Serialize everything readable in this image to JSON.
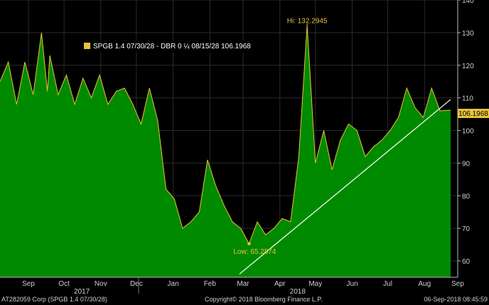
{
  "chart_data": {
    "type": "area",
    "series": [
      {
        "name": "SPGB 1.4 07/30/28 - DBR 0 ¼ 08/15/28 106.1968",
        "color": "#e8c23a",
        "fill": "#008a00",
        "x": [
          "2017-08-22",
          "2017-08-29",
          "2017-09-05",
          "2017-09-12",
          "2017-09-19",
          "2017-09-26",
          "2017-10-01",
          "2017-10-03",
          "2017-10-10",
          "2017-10-17",
          "2017-10-24",
          "2017-10-31",
          "2017-11-07",
          "2017-11-14",
          "2017-11-21",
          "2017-11-28",
          "2017-12-05",
          "2017-12-12",
          "2017-12-19",
          "2017-12-26",
          "2018-01-02",
          "2018-01-09",
          "2018-01-16",
          "2018-01-23",
          "2018-01-30",
          "2018-02-06",
          "2018-02-13",
          "2018-02-20",
          "2018-02-27",
          "2018-03-06",
          "2018-03-13",
          "2018-03-20",
          "2018-03-27",
          "2018-04-03",
          "2018-04-10",
          "2018-04-17",
          "2018-04-24",
          "2018-05-01",
          "2018-05-08",
          "2018-05-15",
          "2018-05-22",
          "2018-05-29",
          "2018-06-05",
          "2018-06-12",
          "2018-06-19",
          "2018-06-26",
          "2018-07-03",
          "2018-07-10",
          "2018-07-17",
          "2018-07-24",
          "2018-07-31",
          "2018-08-07",
          "2018-08-14",
          "2018-08-21",
          "2018-08-28",
          "2018-09-04",
          "2018-09-06"
        ],
        "values": [
          115,
          121,
          108,
          121,
          111,
          130,
          112,
          123,
          111,
          117,
          108,
          116,
          110,
          117,
          108,
          112,
          113,
          108,
          102,
          113,
          103,
          82,
          79,
          70,
          72,
          75,
          91,
          83,
          77,
          72,
          70,
          65.2874,
          72,
          68,
          70,
          73,
          72,
          92,
          132.2945,
          90,
          100,
          88,
          97,
          102,
          100,
          92,
          95,
          97,
          100,
          104,
          113,
          107,
          104,
          113,
          106,
          106.1968,
          106.1968
        ]
      }
    ],
    "trendline": {
      "from": [
        "2018-03-12",
        56
      ],
      "to": [
        "2018-09-06",
        109.5
      ]
    },
    "annotations": [
      {
        "label": "Hi: 132.2945",
        "x": "2018-05-08",
        "y": 132.2945
      },
      {
        "label": "Low: 65.2874",
        "x": "2018-03-20",
        "y": 65.2874
      }
    ],
    "last_value_label": "106.1968",
    "ylim": [
      55,
      140
    ],
    "y_ticks": [
      60,
      70,
      80,
      90,
      100,
      110,
      120,
      130,
      140
    ],
    "x_range": [
      "2017-08-22",
      "2018-09-12"
    ],
    "month_ticks": [
      {
        "label": "Sep",
        "date": "2017-09-15"
      },
      {
        "label": "Oct",
        "date": "2017-10-15"
      },
      {
        "label": "Nov",
        "date": "2017-11-15"
      },
      {
        "label": "Dec",
        "date": "2017-12-15"
      },
      {
        "label": "Jan",
        "date": "2018-01-15"
      },
      {
        "label": "Feb",
        "date": "2018-02-15"
      },
      {
        "label": "Mar",
        "date": "2018-03-15"
      },
      {
        "label": "Apr",
        "date": "2018-04-15"
      },
      {
        "label": "May",
        "date": "2018-05-15"
      },
      {
        "label": "Jun",
        "date": "2018-06-15"
      },
      {
        "label": "Jul",
        "date": "2018-07-15"
      },
      {
        "label": "Aug",
        "date": "2018-08-15"
      },
      {
        "label": "Sep",
        "date": "2018-09-12"
      }
    ],
    "year_labels": [
      {
        "label": "2017",
        "date": "2017-10-30"
      },
      {
        "label": "2018",
        "date": "2018-04-30"
      }
    ],
    "legend_position": "top-left",
    "grid": true
  },
  "footer": {
    "security": "AT282059 Corp (SPGB 1.4 07/30/28)",
    "copyright": "Copyright© 2018 Bloomberg Finance L.P.",
    "timestamp": "06-Sep-2018 08:45:59"
  }
}
